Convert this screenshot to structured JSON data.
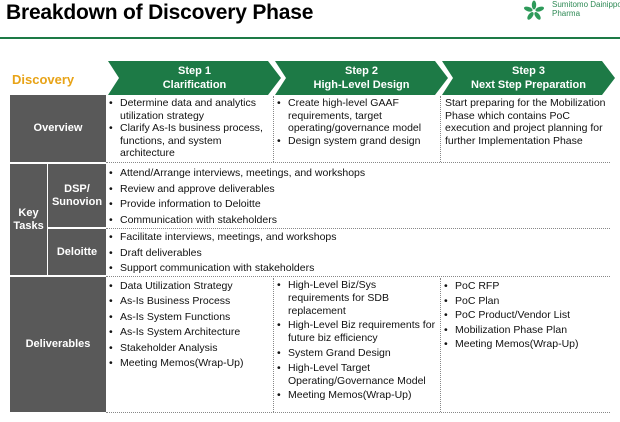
{
  "title": "Breakdown of Discovery Phase",
  "logo": {
    "line1": "Sumitomo Dainippon",
    "line2": "Pharma"
  },
  "discovery_label": "Discovery",
  "steps": [
    {
      "number": "Step 1",
      "name": "Clarification"
    },
    {
      "number": "Step 2",
      "name": "High-Level Design"
    },
    {
      "number": "Step 3",
      "name": "Next Step Preparation"
    }
  ],
  "rows": {
    "overview": {
      "label": "Overview",
      "step1": [
        "Determine data and analytics utilization strategy",
        "Clarify As-Is business process, functions, and system architecture"
      ],
      "step2": [
        "Create high-level GAAF requirements, target operating/governance model",
        "Design system grand design"
      ],
      "step3_text": "Start preparing for the Mobilization Phase which contains PoC execution and project planning for further Implementation Phase"
    },
    "key_tasks": {
      "label_line1": "Key",
      "label_line2": "Tasks",
      "dsp": {
        "label_line1": "DSP/",
        "label_line2": "Sunovion",
        "items": [
          "Attend/Arrange interviews, meetings, and workshops",
          "Review and approve deliverables",
          "Provide information to Deloitte",
          "Communication with stakeholders"
        ]
      },
      "deloitte": {
        "label": "Deloitte",
        "items": [
          "Facilitate interviews, meetings, and workshops",
          "Draft deliverables",
          "Support communication with stakeholders"
        ]
      }
    },
    "deliverables": {
      "label": "Deliverables",
      "step1": [
        "Data Utilization Strategy",
        "As-Is Business Process",
        "As-Is System Functions",
        "As-Is System Architecture",
        "Stakeholder Analysis",
        "Meeting Memos(Wrap-Up)"
      ],
      "step2": [
        "High-Level Biz/Sys requirements for SDB replacement",
        "High-Level Biz requirements for future biz efficiency",
        "System Grand Design",
        "High-Level Target Operating/Governance Model",
        "Meeting Memos(Wrap-Up)"
      ],
      "step3": [
        "PoC RFP",
        "PoC Plan",
        "PoC Product/Vendor List",
        "Mobilization Phase Plan",
        "Meeting Memos(Wrap-Up)"
      ]
    }
  },
  "colors": {
    "header_bg": "#595959",
    "arrow_green": "#1d7a46",
    "accent_orange": "#e8a317"
  }
}
